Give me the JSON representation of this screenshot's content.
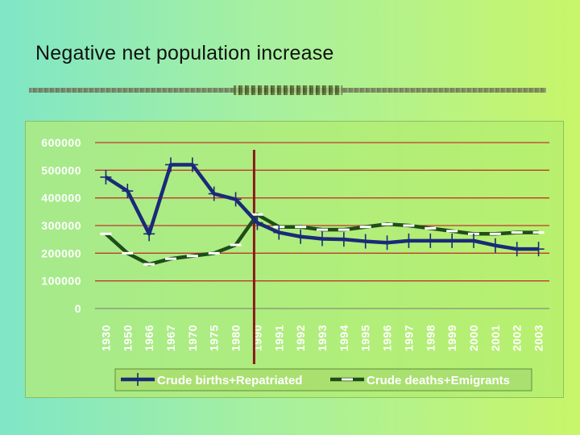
{
  "page": {
    "title": "Negative net population increase"
  },
  "colors": {
    "births_line": "#1a2a78",
    "deaths_line": "#1f4d1a",
    "deaths_dash": "#ffffff",
    "grid": "#c0392b",
    "marker_line": "#8b1a1a",
    "tick_text": "#ffffff"
  },
  "chart_data": {
    "type": "line",
    "title": "",
    "xlabel": "",
    "ylabel": "",
    "ylim": [
      0,
      600000
    ],
    "y_ticks": [
      "600000",
      "500000",
      "400000",
      "300000",
      "200000",
      "100000",
      "0"
    ],
    "grid": true,
    "legend_position": "bottom",
    "categories": [
      "1930",
      "1950",
      "1966",
      "1967",
      "1970",
      "1975",
      "1980",
      "1990",
      "1991",
      "1992",
      "1993",
      "1994",
      "1995",
      "1996",
      "1997",
      "1998",
      "1999",
      "2000",
      "2001",
      "2002",
      "2003"
    ],
    "series": [
      {
        "name": "Crude births+Repatriated",
        "values": [
          475000,
          425000,
          270000,
          520000,
          520000,
          415000,
          395000,
          310000,
          275000,
          260000,
          252000,
          250000,
          243000,
          238000,
          245000,
          245000,
          245000,
          245000,
          228000,
          215000,
          215000
        ]
      },
      {
        "name": "Crude deaths+Emigrants",
        "values": [
          270000,
          200000,
          160000,
          180000,
          190000,
          200000,
          230000,
          340000,
          295000,
          295000,
          285000,
          285000,
          295000,
          305000,
          300000,
          290000,
          280000,
          270000,
          270000,
          275000,
          275000
        ]
      }
    ],
    "vertical_marker_category": "1990"
  }
}
